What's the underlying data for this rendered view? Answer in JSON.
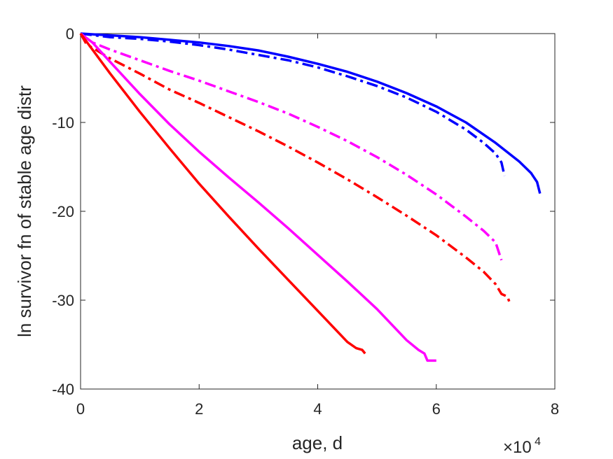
{
  "chart_data": {
    "type": "line",
    "title": "",
    "xlabel": "age, d",
    "ylabel": "ln survivor fn of stable age distr",
    "x_exponent_label": "×10",
    "x_exponent_power": "4",
    "x_multiplier": 10000,
    "xlim": [
      0,
      80000
    ],
    "ylim": [
      -40,
      0
    ],
    "x_ticks": [
      0,
      20000,
      40000,
      60000,
      80000
    ],
    "x_tick_labels": [
      "0",
      "2",
      "4",
      "6",
      "8"
    ],
    "y_ticks": [
      0,
      -10,
      -20,
      -30,
      -40
    ],
    "y_tick_labels": [
      "0",
      "-10",
      "-20",
      "-30",
      "-40"
    ],
    "grid": false,
    "legend": "none",
    "series": [
      {
        "color": "#0000ff",
        "style": "solid",
        "x": [
          0,
          5000,
          10000,
          15000,
          20000,
          25000,
          30000,
          35000,
          40000,
          45000,
          50000,
          55000,
          60000,
          65000,
          70000,
          74000,
          76000,
          77000,
          77500
        ],
        "y": [
          0,
          -0.2,
          -0.4,
          -0.7,
          -1.0,
          -1.4,
          -1.9,
          -2.6,
          -3.4,
          -4.3,
          -5.4,
          -6.7,
          -8.2,
          -10.0,
          -12.3,
          -14.4,
          -15.7,
          -16.7,
          -18.0
        ]
      },
      {
        "color": "#0000ff",
        "style": "dashdot",
        "x": [
          0,
          5000,
          10000,
          15000,
          20000,
          25000,
          30000,
          35000,
          40000,
          45000,
          50000,
          55000,
          60000,
          65000,
          68000,
          70000,
          71000,
          71500
        ],
        "y": [
          0,
          -0.4,
          -0.6,
          -0.9,
          -1.3,
          -1.8,
          -2.4,
          -3.0,
          -3.8,
          -4.8,
          -5.9,
          -7.2,
          -8.8,
          -10.8,
          -12.3,
          -13.5,
          -14.5,
          -16.0
        ]
      },
      {
        "color": "#ff00ff",
        "style": "dashdot",
        "x": [
          0,
          2000,
          5000,
          10000,
          15000,
          20000,
          25000,
          30000,
          35000,
          40000,
          45000,
          50000,
          55000,
          60000,
          65000,
          68000,
          70000,
          71000
        ],
        "y": [
          0,
          -1.0,
          -1.8,
          -3.0,
          -4.2,
          -5.3,
          -6.5,
          -7.7,
          -9.0,
          -10.5,
          -12.1,
          -13.9,
          -15.9,
          -18.1,
          -20.6,
          -22.2,
          -23.5,
          -25.5
        ]
      },
      {
        "color": "#ff0000",
        "style": "dashdot",
        "x": [
          0,
          1000,
          5000,
          10000,
          15000,
          20000,
          25000,
          30000,
          35000,
          40000,
          45000,
          50000,
          55000,
          60000,
          65000,
          68000,
          70000,
          71000,
          72000,
          72500
        ],
        "y": [
          0,
          -1.2,
          -2.8,
          -4.5,
          -6.3,
          -7.8,
          -9.4,
          -11.0,
          -12.7,
          -14.5,
          -16.4,
          -18.4,
          -20.5,
          -22.7,
          -25.2,
          -26.8,
          -28.2,
          -29.3,
          -29.6,
          -30.5
        ]
      },
      {
        "color": "#ff00ff",
        "style": "solid",
        "x": [
          0,
          2000,
          5000,
          10000,
          15000,
          20000,
          25000,
          30000,
          35000,
          40000,
          45000,
          50000,
          55000,
          57000,
          58000,
          58500,
          59000,
          60000
        ],
        "y": [
          0,
          -1.0,
          -3.2,
          -6.8,
          -10.2,
          -13.3,
          -16.2,
          -19.0,
          -21.9,
          -24.9,
          -27.9,
          -31.0,
          -34.5,
          -35.6,
          -36.0,
          -36.8,
          -36.8,
          -36.8
        ]
      },
      {
        "color": "#ff0000",
        "style": "solid",
        "x": [
          0,
          5000,
          10000,
          15000,
          20000,
          25000,
          30000,
          35000,
          40000,
          45000,
          46500,
          47500,
          48000
        ],
        "y": [
          0,
          -4.5,
          -8.8,
          -12.9,
          -16.9,
          -20.6,
          -24.2,
          -27.7,
          -31.2,
          -34.7,
          -35.4,
          -35.6,
          -36.0
        ]
      }
    ]
  }
}
